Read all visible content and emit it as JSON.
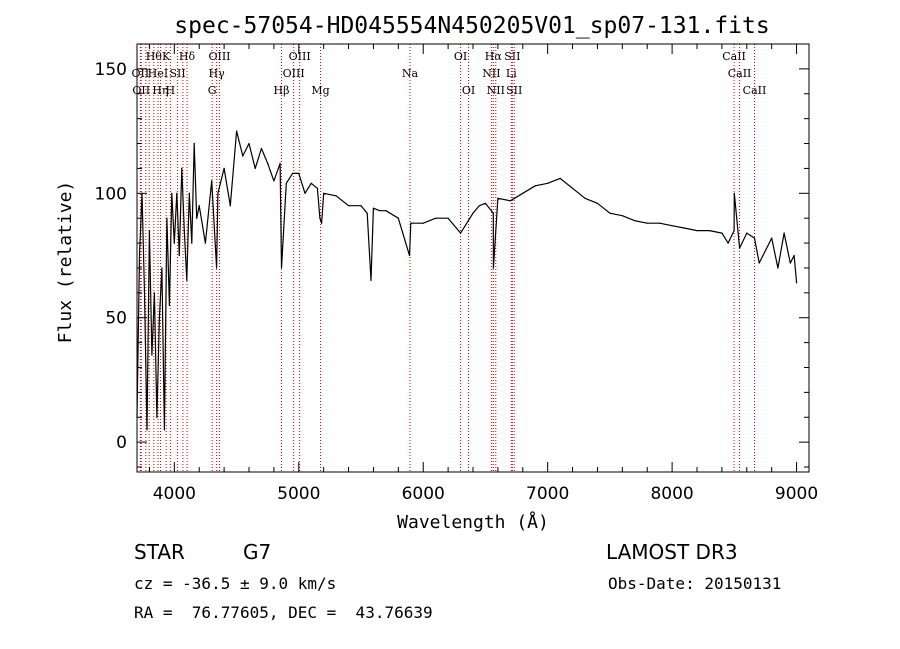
{
  "chart_data": {
    "type": "line",
    "title": "spec-57054-HD045554N450205V01_sp07-131.fits",
    "xlabel": "Wavelength (Å)",
    "ylabel": "Flux (relative)",
    "xlim": [
      3700,
      9100
    ],
    "ylim": [
      -12,
      160
    ],
    "x_ticks": [
      4000,
      5000,
      6000,
      7000,
      8000,
      9000
    ],
    "y_ticks": [
      0,
      50,
      100,
      150
    ],
    "grid": false,
    "series": [
      {
        "color": "#000000",
        "x": [
          3700,
          3720,
          3740,
          3760,
          3780,
          3800,
          3820,
          3840,
          3860,
          3880,
          3900,
          3920,
          3940,
          3960,
          3980,
          4000,
          4020,
          4040,
          4060,
          4080,
          4100,
          4120,
          4140,
          4160,
          4180,
          4200,
          4250,
          4300,
          4340,
          4350,
          4400,
          4450,
          4500,
          4550,
          4600,
          4650,
          4700,
          4750,
          4800,
          4850,
          4861,
          4900,
          4950,
          5000,
          5050,
          5100,
          5150,
          5170,
          5183,
          5200,
          5300,
          5400,
          5500,
          5550,
          5580,
          5600,
          5650,
          5700,
          5800,
          5890,
          5900,
          6000,
          6100,
          6200,
          6300,
          6400,
          6450,
          6500,
          6563,
          6564,
          6600,
          6700,
          6800,
          6900,
          7000,
          7100,
          7200,
          7300,
          7400,
          7500,
          7600,
          7700,
          7800,
          7900,
          8000,
          8100,
          8200,
          8300,
          8400,
          8450,
          8498,
          8500,
          8542,
          8600,
          8662,
          8700,
          8800,
          8850,
          8900,
          8950,
          8980,
          9000
        ],
        "y": [
          10,
          75,
          100,
          60,
          5,
          85,
          35,
          60,
          10,
          50,
          70,
          5,
          90,
          55,
          100,
          80,
          100,
          75,
          110,
          85,
          65,
          100,
          80,
          120,
          90,
          95,
          80,
          105,
          70,
          100,
          110,
          95,
          125,
          115,
          120,
          110,
          118,
          112,
          105,
          112,
          70,
          104,
          108,
          108,
          100,
          104,
          102,
          90,
          88,
          100,
          99,
          95,
          95,
          92,
          65,
          94,
          93,
          93,
          90,
          75,
          88,
          88,
          90,
          90,
          84,
          92,
          95,
          96,
          92,
          70,
          98,
          97,
          100,
          103,
          104,
          106,
          102,
          98,
          96,
          92,
          91,
          89,
          88,
          88,
          87,
          86,
          85,
          85,
          84,
          80,
          85,
          100,
          78,
          84,
          82,
          72,
          82,
          70,
          84,
          72,
          75,
          64
        ]
      }
    ],
    "line_markers": [
      {
        "w": 3727,
        "labels": [
          "OII"
        ],
        "rows": [
          1
        ]
      },
      {
        "w": 3734,
        "labels": [
          "OII"
        ],
        "rows": [
          2
        ]
      },
      {
        "w": 3771,
        "labels": [],
        "rows": []
      },
      {
        "w": 3798,
        "labels": [],
        "rows": []
      },
      {
        "w": 3835,
        "labels": [
          "Hθ"
        ],
        "rows": [
          0
        ]
      },
      {
        "w": 3869,
        "labels": [
          "HeI"
        ],
        "rows": [
          1
        ]
      },
      {
        "w": 3889,
        "labels": [
          "Hη"
        ],
        "rows": [
          2
        ]
      },
      {
        "w": 3934,
        "labels": [
          "K"
        ],
        "rows": [
          0
        ]
      },
      {
        "w": 3968,
        "labels": [
          "H"
        ],
        "rows": [
          2
        ]
      },
      {
        "w": 4026,
        "labels": [
          "SII"
        ],
        "rows": [
          1
        ]
      },
      {
        "w": 4069,
        "labels": [],
        "rows": []
      },
      {
        "w": 4102,
        "labels": [
          "Hδ"
        ],
        "rows": [
          0
        ]
      },
      {
        "w": 4304,
        "labels": [
          "G"
        ],
        "rows": [
          2
        ]
      },
      {
        "w": 4340,
        "labels": [
          "Hγ"
        ],
        "rows": [
          1
        ]
      },
      {
        "w": 4363,
        "labels": [
          "OIII"
        ],
        "rows": [
          0
        ]
      },
      {
        "w": 4861,
        "labels": [
          "Hβ"
        ],
        "rows": [
          2
        ]
      },
      {
        "w": 4959,
        "labels": [
          "OIII"
        ],
        "rows": [
          1
        ]
      },
      {
        "w": 5007,
        "labels": [
          "OIII"
        ],
        "rows": [
          0
        ]
      },
      {
        "w": 5175,
        "labels": [
          "Mg"
        ],
        "rows": [
          2
        ]
      },
      {
        "w": 5894,
        "labels": [
          "Na"
        ],
        "rows": [
          1
        ]
      },
      {
        "w": 6300,
        "labels": [
          "OI"
        ],
        "rows": [
          0
        ]
      },
      {
        "w": 6364,
        "labels": [
          "OI"
        ],
        "rows": [
          2
        ]
      },
      {
        "w": 6548,
        "labels": [
          "NII"
        ],
        "rows": [
          1
        ]
      },
      {
        "w": 6563,
        "labels": [
          "Hα"
        ],
        "rows": [
          0
        ]
      },
      {
        "w": 6583,
        "labels": [
          "NII"
        ],
        "rows": [
          2
        ]
      },
      {
        "w": 6708,
        "labels": [
          "Li"
        ],
        "rows": [
          1
        ]
      },
      {
        "w": 6716,
        "labels": [
          "SII"
        ],
        "rows": [
          0
        ]
      },
      {
        "w": 6731,
        "labels": [
          "SII"
        ],
        "rows": [
          2
        ]
      },
      {
        "w": 8498,
        "labels": [
          "CaII"
        ],
        "rows": [
          0
        ]
      },
      {
        "w": 8542,
        "labels": [
          "CaII"
        ],
        "rows": [
          1
        ]
      },
      {
        "w": 8662,
        "labels": [
          "CaII"
        ],
        "rows": [
          2
        ]
      }
    ],
    "marker_color": "#cc0000"
  },
  "info": {
    "object_class": "STAR",
    "subclass": "G7",
    "survey": "LAMOST DR3",
    "redshift_text": "cz = -36.5 ± 9.0 km/s",
    "obs_date_text": "Obs-Date: 20150131",
    "coords_text": "RA =  76.77605, DEC =  43.76639"
  }
}
